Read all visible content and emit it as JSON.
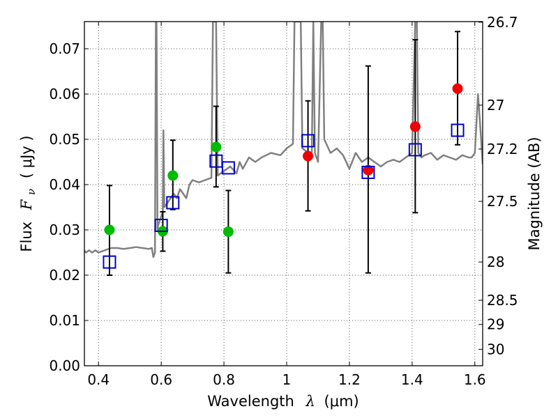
{
  "chart_data": {
    "type": "scatter",
    "title": "",
    "xlabel_main": "Wavelength",
    "xlabel_symbol": "λ",
    "xlabel_unit": "(μm)",
    "ylabel_main": "Flux",
    "ylabel_symbol": "F",
    "ylabel_sub": "ν",
    "ylabel_unit": "( μJy )",
    "y2label": "Magnitude (AB)",
    "xlim": [
      0.355,
      1.625
    ],
    "ylim": [
      0.0,
      0.076
    ],
    "grid": true,
    "x_ticks": [
      0.4,
      0.6,
      0.8,
      1.0,
      1.2,
      1.4,
      1.6
    ],
    "x_tick_labels": [
      "0.4",
      "0.6",
      "0.8",
      "1",
      "1.2",
      "1.4",
      "1.6"
    ],
    "y_ticks": [
      0.0,
      0.01,
      0.02,
      0.03,
      0.04,
      0.05,
      0.06,
      0.07
    ],
    "y_tick_labels": [
      "0.00",
      "0.01",
      "0.02",
      "0.03",
      "0.04",
      "0.05",
      "0.06",
      "0.07"
    ],
    "y2_ticks": [
      {
        "label": "26.7",
        "mag": 26.7
      },
      {
        "label": "27",
        "mag": 27.0
      },
      {
        "label": "27.2",
        "mag": 27.2
      },
      {
        "label": "27.5",
        "mag": 27.5
      },
      {
        "label": "28",
        "mag": 28.0
      },
      {
        "label": "28.5",
        "mag": 28.5
      },
      {
        "label": "29",
        "mag": 29.0
      },
      {
        "label": "30",
        "mag": 30.0
      }
    ],
    "colors": {
      "sed": "#808080",
      "green_points": "#00bb00",
      "red_points": "#ee0000",
      "model_squares": "#0000cc",
      "errorbar": "#000000",
      "grid": "#555555"
    },
    "sed_template": {
      "name": "model spectrum",
      "x": [
        0.355,
        0.36,
        0.37,
        0.38,
        0.39,
        0.4,
        0.42,
        0.44,
        0.46,
        0.48,
        0.5,
        0.52,
        0.54,
        0.56,
        0.57,
        0.575,
        0.58,
        0.583,
        0.585,
        0.588,
        0.59,
        0.595,
        0.6,
        0.605,
        0.607,
        0.61,
        0.62,
        0.63,
        0.64,
        0.65,
        0.66,
        0.67,
        0.68,
        0.69,
        0.7,
        0.72,
        0.74,
        0.76,
        0.765,
        0.768,
        0.772,
        0.775,
        0.78,
        0.8,
        0.82,
        0.84,
        0.85,
        0.86,
        0.88,
        0.9,
        0.92,
        0.95,
        0.98,
        1.0,
        1.02,
        1.025,
        1.03,
        1.04,
        1.045,
        1.05,
        1.06,
        1.07,
        1.08,
        1.085,
        1.09,
        1.1,
        1.11,
        1.115,
        1.12,
        1.14,
        1.16,
        1.18,
        1.2,
        1.22,
        1.24,
        1.26,
        1.28,
        1.3,
        1.32,
        1.34,
        1.36,
        1.38,
        1.4,
        1.41,
        1.415,
        1.42,
        1.43,
        1.44,
        1.46,
        1.48,
        1.5,
        1.52,
        1.54,
        1.56,
        1.58,
        1.59,
        1.6,
        1.61,
        1.62,
        1.625
      ],
      "y": [
        0.0255,
        0.025,
        0.0255,
        0.025,
        0.0255,
        0.025,
        0.0255,
        0.026,
        0.026,
        0.0258,
        0.026,
        0.0262,
        0.026,
        0.0258,
        0.026,
        0.024,
        0.025,
        0.076,
        0.076,
        0.03,
        0.031,
        0.032,
        0.033,
        0.034,
        0.052,
        0.035,
        0.036,
        0.037,
        0.038,
        0.037,
        0.039,
        0.038,
        0.037,
        0.04,
        0.041,
        0.0405,
        0.041,
        0.0415,
        0.076,
        0.076,
        0.076,
        0.076,
        0.042,
        0.043,
        0.044,
        0.0425,
        0.045,
        0.0435,
        0.046,
        0.045,
        0.046,
        0.047,
        0.0465,
        0.048,
        0.049,
        0.076,
        0.076,
        0.076,
        0.076,
        0.048,
        0.0475,
        0.047,
        0.046,
        0.076,
        0.047,
        0.045,
        0.076,
        0.076,
        0.05,
        0.047,
        0.048,
        0.0465,
        0.0435,
        0.047,
        0.045,
        0.046,
        0.045,
        0.044,
        0.045,
        0.0455,
        0.045,
        0.046,
        0.047,
        0.076,
        0.076,
        0.047,
        0.046,
        0.0465,
        0.047,
        0.0455,
        0.0465,
        0.046,
        0.0455,
        0.0465,
        0.046,
        0.046,
        0.047,
        0.06,
        0.05,
        0.0445
      ]
    },
    "green_points": {
      "name": "observed photometry (green)",
      "x": [
        0.435,
        0.605,
        0.637,
        0.775,
        0.814
      ],
      "y": [
        0.03,
        0.0297,
        0.042,
        0.0483,
        0.0296
      ]
    },
    "red_points": {
      "name": "observed photometry (red)",
      "x": [
        1.068,
        1.26,
        1.41,
        1.545
      ],
      "y": [
        0.0463,
        0.0432,
        0.0528,
        0.0612
      ]
    },
    "model_squares": {
      "name": "model photometry",
      "x": [
        0.435,
        0.6,
        0.637,
        0.775,
        0.814,
        1.068,
        1.26,
        1.41,
        1.545
      ],
      "y": [
        0.0229,
        0.031,
        0.036,
        0.0452,
        0.0437,
        0.0497,
        0.0427,
        0.0477,
        0.052
      ]
    },
    "error_bars": [
      {
        "x": 0.435,
        "low": 0.02,
        "high": 0.0398
      },
      {
        "x": 0.605,
        "low": 0.0253,
        "high": 0.034
      },
      {
        "x": 0.637,
        "low": 0.0345,
        "high": 0.0498
      },
      {
        "x": 0.775,
        "low": 0.0395,
        "high": 0.0573
      },
      {
        "x": 0.814,
        "low": 0.0205,
        "high": 0.0387
      },
      {
        "x": 1.068,
        "low": 0.0342,
        "high": 0.0585
      },
      {
        "x": 1.26,
        "low": 0.0205,
        "high": 0.0662
      },
      {
        "x": 1.41,
        "low": 0.0338,
        "high": 0.072
      },
      {
        "x": 1.545,
        "low": 0.0488,
        "high": 0.0738
      }
    ]
  }
}
